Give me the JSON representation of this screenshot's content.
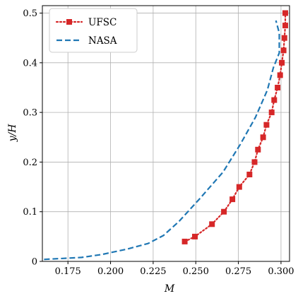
{
  "chart_data": {
    "type": "line",
    "xlabel": "M",
    "ylabel": "y/H",
    "xlim": [
      0.16,
      0.305
    ],
    "ylim": [
      0,
      0.515
    ],
    "xticks": [
      0.175,
      0.2,
      0.225,
      0.25,
      0.275,
      0.3
    ],
    "xtick_labels": [
      "0.175",
      "0.200",
      "0.225",
      "0.250",
      "0.275",
      "0.300"
    ],
    "yticks": [
      0,
      0.1,
      0.2,
      0.3,
      0.4,
      0.5
    ],
    "ytick_labels": [
      "0",
      "0.1",
      "0.2",
      "0.3",
      "0.4",
      "0.5"
    ],
    "grid": true,
    "legend_position": "top-left",
    "series": [
      {
        "name": "UFSC",
        "color": "#d62728",
        "style": "dotted-with-square-markers",
        "x": [
          0.2435,
          0.2495,
          0.2595,
          0.2665,
          0.2715,
          0.2755,
          0.2815,
          0.2845,
          0.2865,
          0.2895,
          0.2915,
          0.2945,
          0.296,
          0.298,
          0.2995,
          0.3005,
          0.3015,
          0.302,
          0.3025,
          0.3025
        ],
        "y": [
          0.04,
          0.05,
          0.075,
          0.1,
          0.125,
          0.15,
          0.175,
          0.2,
          0.225,
          0.25,
          0.275,
          0.3,
          0.325,
          0.35,
          0.375,
          0.4,
          0.425,
          0.45,
          0.475,
          0.5
        ]
      },
      {
        "name": "NASA",
        "color": "#1f77b4",
        "style": "dashed",
        "x": [
          0.161,
          0.172,
          0.183,
          0.195,
          0.21,
          0.222,
          0.231,
          0.24,
          0.252,
          0.266,
          0.276,
          0.285,
          0.292,
          0.2955,
          0.299,
          0.299,
          0.297
        ],
        "y": [
          0.004,
          0.006,
          0.008,
          0.014,
          0.025,
          0.036,
          0.052,
          0.08,
          0.125,
          0.18,
          0.235,
          0.29,
          0.345,
          0.39,
          0.42,
          0.46,
          0.485
        ]
      }
    ]
  }
}
